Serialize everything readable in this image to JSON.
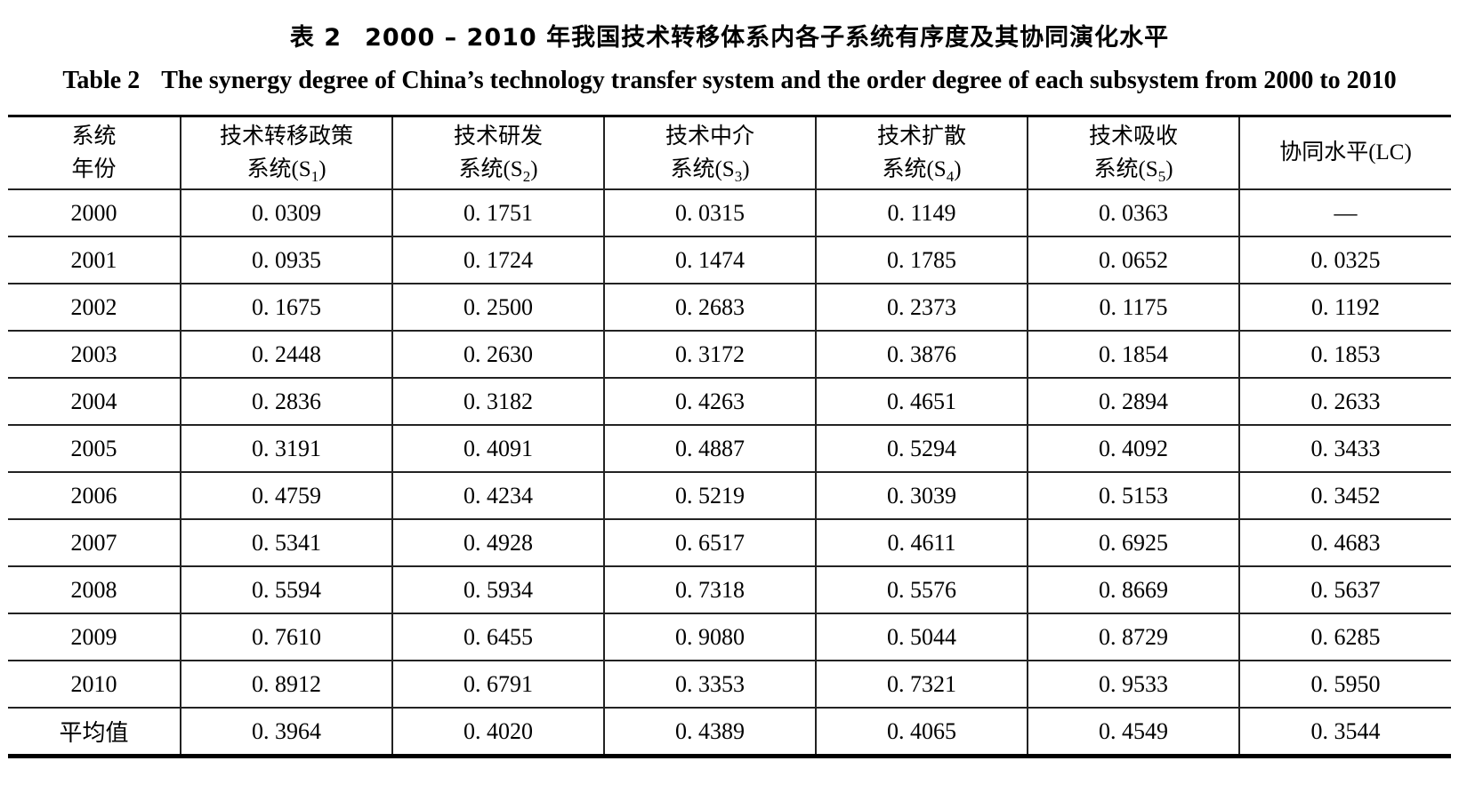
{
  "title_cn": {
    "label": "表 2",
    "text": "2000 – 2010 年我国技术转移体系内各子系统有序度及其协同演化水平"
  },
  "title_en": {
    "label": "Table 2",
    "text": "The synergy degree of China’s technology transfer system and the order degree of each subsystem from 2000 to 2010"
  },
  "table": {
    "columns": [
      {
        "line1": "系统",
        "line2_pre": "年份",
        "sub": "",
        "line2_post": ""
      },
      {
        "line1": "技术转移政策",
        "line2_pre": "系统(S",
        "sub": "1",
        "line2_post": ")"
      },
      {
        "line1": "技术研发",
        "line2_pre": "系统(S",
        "sub": "2",
        "line2_post": ")"
      },
      {
        "line1": "技术中介",
        "line2_pre": "系统(S",
        "sub": "3",
        "line2_post": ")"
      },
      {
        "line1": "技术扩散",
        "line2_pre": "系统(S",
        "sub": "4",
        "line2_post": ")"
      },
      {
        "line1": "技术吸收",
        "line2_pre": "系统(S",
        "sub": "5",
        "line2_post": ")"
      },
      {
        "single": "协同水平(LC)"
      }
    ],
    "rows": [
      {
        "label": "2000",
        "values": [
          "0. 0309",
          "0. 1751",
          "0. 0315",
          "0. 1149",
          "0. 0363",
          "—"
        ]
      },
      {
        "label": "2001",
        "values": [
          "0. 0935",
          "0. 1724",
          "0. 1474",
          "0. 1785",
          "0. 0652",
          "0. 0325"
        ]
      },
      {
        "label": "2002",
        "values": [
          "0. 1675",
          "0. 2500",
          "0. 2683",
          "0. 2373",
          "0. 1175",
          "0. 1192"
        ]
      },
      {
        "label": "2003",
        "values": [
          "0. 2448",
          "0. 2630",
          "0. 3172",
          "0. 3876",
          "0. 1854",
          "0. 1853"
        ]
      },
      {
        "label": "2004",
        "values": [
          "0. 2836",
          "0. 3182",
          "0. 4263",
          "0. 4651",
          "0. 2894",
          "0. 2633"
        ]
      },
      {
        "label": "2005",
        "values": [
          "0. 3191",
          "0. 4091",
          "0. 4887",
          "0. 5294",
          "0. 4092",
          "0. 3433"
        ]
      },
      {
        "label": "2006",
        "values": [
          "0. 4759",
          "0. 4234",
          "0. 5219",
          "0. 3039",
          "0. 5153",
          "0. 3452"
        ]
      },
      {
        "label": "2007",
        "values": [
          "0. 5341",
          "0. 4928",
          "0. 6517",
          "0. 4611",
          "0. 6925",
          "0. 4683"
        ]
      },
      {
        "label": "2008",
        "values": [
          "0. 5594",
          "0. 5934",
          "0. 7318",
          "0. 5576",
          "0. 8669",
          "0. 5637"
        ]
      },
      {
        "label": "2009",
        "values": [
          "0. 7610",
          "0. 6455",
          "0. 9080",
          "0. 5044",
          "0. 8729",
          "0. 6285"
        ]
      },
      {
        "label": "2010",
        "values": [
          "0. 8912",
          "0. 6791",
          "0. 3353",
          "0. 7321",
          "0. 9533",
          "0. 5950"
        ]
      },
      {
        "label": "平均值",
        "values": [
          "0. 3964",
          "0. 4020",
          "0. 4389",
          "0. 4065",
          "0. 4549",
          "0. 3544"
        ]
      }
    ]
  }
}
